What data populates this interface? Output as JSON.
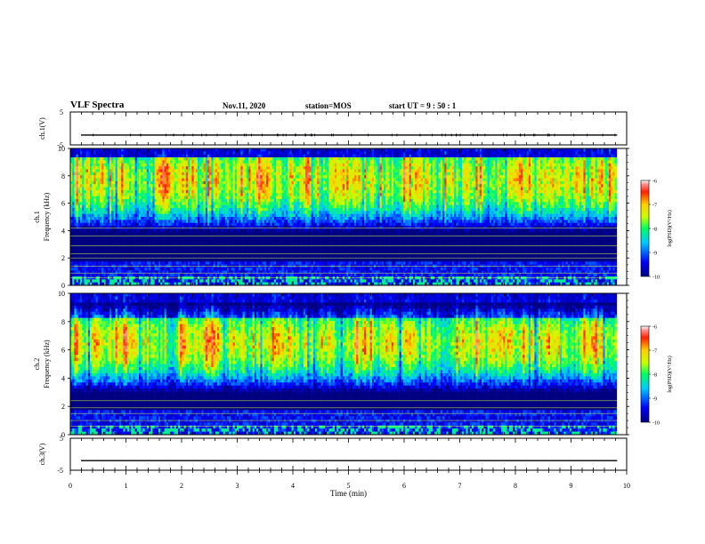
{
  "header": {
    "title": "VLF Spectra",
    "date": "Nov.11, 2020",
    "station": "station=MOS",
    "start": "start  UT =   9 : 50 : 1"
  },
  "chart_data": [
    {
      "type": "line",
      "name": "ch1-waveform",
      "ylabel": "ch.1(V)",
      "ylim": [
        -5,
        5
      ],
      "yticks": [
        "5",
        "-5"
      ],
      "xlim": [
        0,
        10
      ],
      "level": -2,
      "series": [
        {
          "values": [
            -2,
            -2
          ]
        }
      ]
    },
    {
      "type": "heatmap",
      "name": "ch1-spectrogram",
      "ylabel_top": "ch.1",
      "ylabel": "Frequency (kHz)",
      "ylim": [
        0,
        10
      ],
      "yticks": [
        "0",
        "2",
        "4",
        "6",
        "8",
        "10"
      ],
      "xlim": [
        0,
        10
      ],
      "data_end_min": 9.83,
      "bright_band_khz": [
        6.5,
        9.0
      ],
      "colorbar": {
        "label": "log(PSD)(V²/Hz)",
        "range": [
          -10,
          -6
        ],
        "ticks": [
          "-6",
          "-7",
          "-8",
          "-9",
          "-10"
        ]
      }
    },
    {
      "type": "heatmap",
      "name": "ch2-spectrogram",
      "ylabel_top": "ch.2",
      "ylabel": "Frequency (kHz)",
      "ylim": [
        0,
        10
      ],
      "yticks": [
        "0",
        "2",
        "4",
        "6",
        "8",
        "10"
      ],
      "xlim": [
        0,
        10
      ],
      "data_end_min": 9.83,
      "bright_band_khz": [
        5.5,
        7.5
      ],
      "colorbar": {
        "label": "log(PSD)(V²/Hz)",
        "range": [
          -10,
          -6
        ],
        "ticks": [
          "-6",
          "-7",
          "-8",
          "-9",
          "-10"
        ]
      }
    },
    {
      "type": "line",
      "name": "ch3-waveform",
      "ylabel": "ch.3(V)",
      "ylim": [
        -5,
        5
      ],
      "yticks": [
        "5",
        "-5"
      ],
      "xlim": [
        0,
        10
      ],
      "level": -2,
      "series": [
        {
          "values": [
            -2,
            -2
          ]
        }
      ]
    }
  ],
  "xaxis": {
    "label": "Time (min)",
    "ticks": [
      "0",
      "1",
      "2",
      "3",
      "4",
      "5",
      "6",
      "7",
      "8",
      "9",
      "10"
    ]
  }
}
